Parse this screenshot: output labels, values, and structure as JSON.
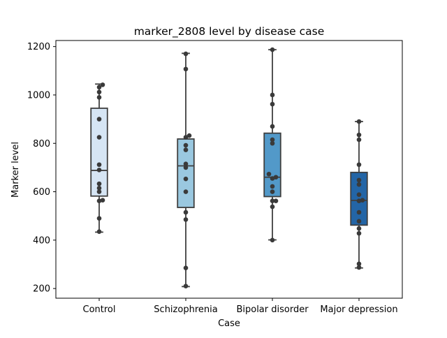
{
  "chart_data": {
    "type": "box",
    "title": "marker_2808 level by disease case",
    "xlabel": "Case",
    "ylabel": "Marker level",
    "categories": [
      "Control",
      "Schizophrenia",
      "Bipolar disorder",
      "Major depression"
    ],
    "ylim": [
      160,
      1225
    ],
    "yticks": [
      200,
      400,
      600,
      800,
      1000,
      1200
    ],
    "grid": false,
    "legend": "none",
    "colors": [
      "#d6e5f4",
      "#9ac8e0",
      "#5299c9",
      "#2365a6"
    ],
    "boxes": [
      {
        "category": "Control",
        "min": 433,
        "q1": 582,
        "median": 688,
        "q3": 945,
        "max": 1045
      },
      {
        "category": "Schizophrenia",
        "min": 208,
        "q1": 535,
        "median": 707,
        "q3": 818,
        "max": 1172
      },
      {
        "category": "Bipolar disorder",
        "min": 401,
        "q1": 580,
        "median": 660,
        "q3": 842,
        "max": 1187
      },
      {
        "category": "Major depression",
        "min": 285,
        "q1": 462,
        "median": 564,
        "q3": 680,
        "max": 890
      }
    ],
    "points": [
      {
        "category": "Control",
        "values": [
          1042,
          1032,
          1012,
          990,
          900,
          825,
          712,
          690,
          633,
          615,
          600,
          565,
          562,
          490,
          435
        ]
      },
      {
        "category": "Schizophrenia",
        "values": [
          1170,
          1107,
          832,
          825,
          792,
          773,
          715,
          700,
          653,
          600,
          515,
          485,
          285,
          210
        ]
      },
      {
        "category": "Bipolar disorder",
        "values": [
          1187,
          1000,
          962,
          870,
          815,
          800,
          673,
          660,
          655,
          622,
          600,
          562,
          562,
          538,
          400
        ]
      },
      {
        "category": "Major depression",
        "values": [
          890,
          835,
          815,
          712,
          648,
          630,
          588,
          565,
          562,
          515,
          478,
          448,
          428,
          302,
          287
        ]
      }
    ]
  }
}
